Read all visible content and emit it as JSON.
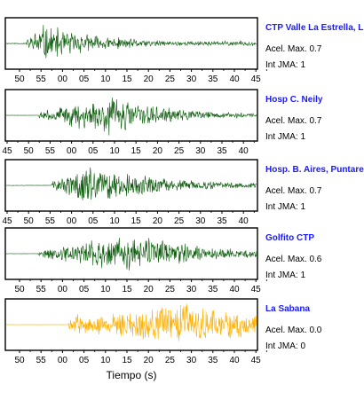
{
  "chart_data": {
    "type": "line",
    "xlabel": "Tiempo (s)",
    "acel_label": "Acel. Max.",
    "int_label": "Int JMA:",
    "panels": [
      {
        "station": "CTP Valle La Estrella, L",
        "acel_max": "0.7",
        "int_jma": "1",
        "color": "#0a5c0a",
        "tick_labels": [
          "50",
          "55",
          "00",
          "05",
          "10",
          "15",
          "20",
          "25",
          "30",
          "35",
          "40",
          "45"
        ],
        "envelope": {
          "onset": 0.08,
          "peak": 0.14,
          "decay": 0.25,
          "peak_amp": 0.95,
          "pre_noise": 0.18,
          "tail": 0.12
        },
        "seed": 11
      },
      {
        "station": "Hosp C. Neily",
        "acel_max": "0.7",
        "int_jma": "1",
        "color": "#0a5c0a",
        "tick_labels": [
          "45",
          "50",
          "55",
          "00",
          "05",
          "10",
          "15",
          "20",
          "25",
          "30",
          "35",
          "40"
        ],
        "envelope": {
          "onset": 0.13,
          "peak": 0.42,
          "decay": 0.22,
          "peak_amp": 1.0,
          "pre_noise": 0.04,
          "tail": 0.15
        },
        "seed": 23
      },
      {
        "station": "Hosp. B. Aires, Puntare",
        "acel_max": "0.7",
        "int_jma": "1",
        "color": "#0a5c0a",
        "tick_labels": [
          "45",
          "50",
          "55",
          "00",
          "05",
          "10",
          "15",
          "20",
          "25",
          "30",
          "35",
          "40",
          "45"
        ],
        "envelope": {
          "onset": 0.18,
          "peak": 0.32,
          "decay": 0.3,
          "peak_amp": 1.0,
          "pre_noise": 0.06,
          "tail": 0.15
        },
        "seed": 37
      },
      {
        "station": "Golfito CTP",
        "acel_max": "0.6",
        "int_jma": "1",
        "color": "#0a5c0a",
        "tick_labels": [
          "50",
          "55",
          "00",
          "05",
          "10",
          "15",
          "20",
          "25",
          "30",
          "35",
          "40",
          "45"
        ],
        "envelope": {
          "onset": 0.13,
          "peak": 0.5,
          "decay": 0.28,
          "peak_amp": 1.0,
          "pre_noise": 0.03,
          "tail": 0.12
        },
        "seed": 51
      },
      {
        "station": "La Sabana",
        "acel_max": "0.0",
        "int_jma": "0",
        "color": "#ffb000",
        "tick_labels": [
          "50",
          "55",
          "00",
          "05",
          "10",
          "15",
          "20",
          "25",
          "30",
          "35",
          "40",
          "45"
        ],
        "envelope": {
          "onset": 0.25,
          "peak": 0.72,
          "decay": 0.45,
          "peak_amp": 1.0,
          "pre_noise": 0.04,
          "tail": 0.5
        },
        "seed": 67
      }
    ]
  }
}
